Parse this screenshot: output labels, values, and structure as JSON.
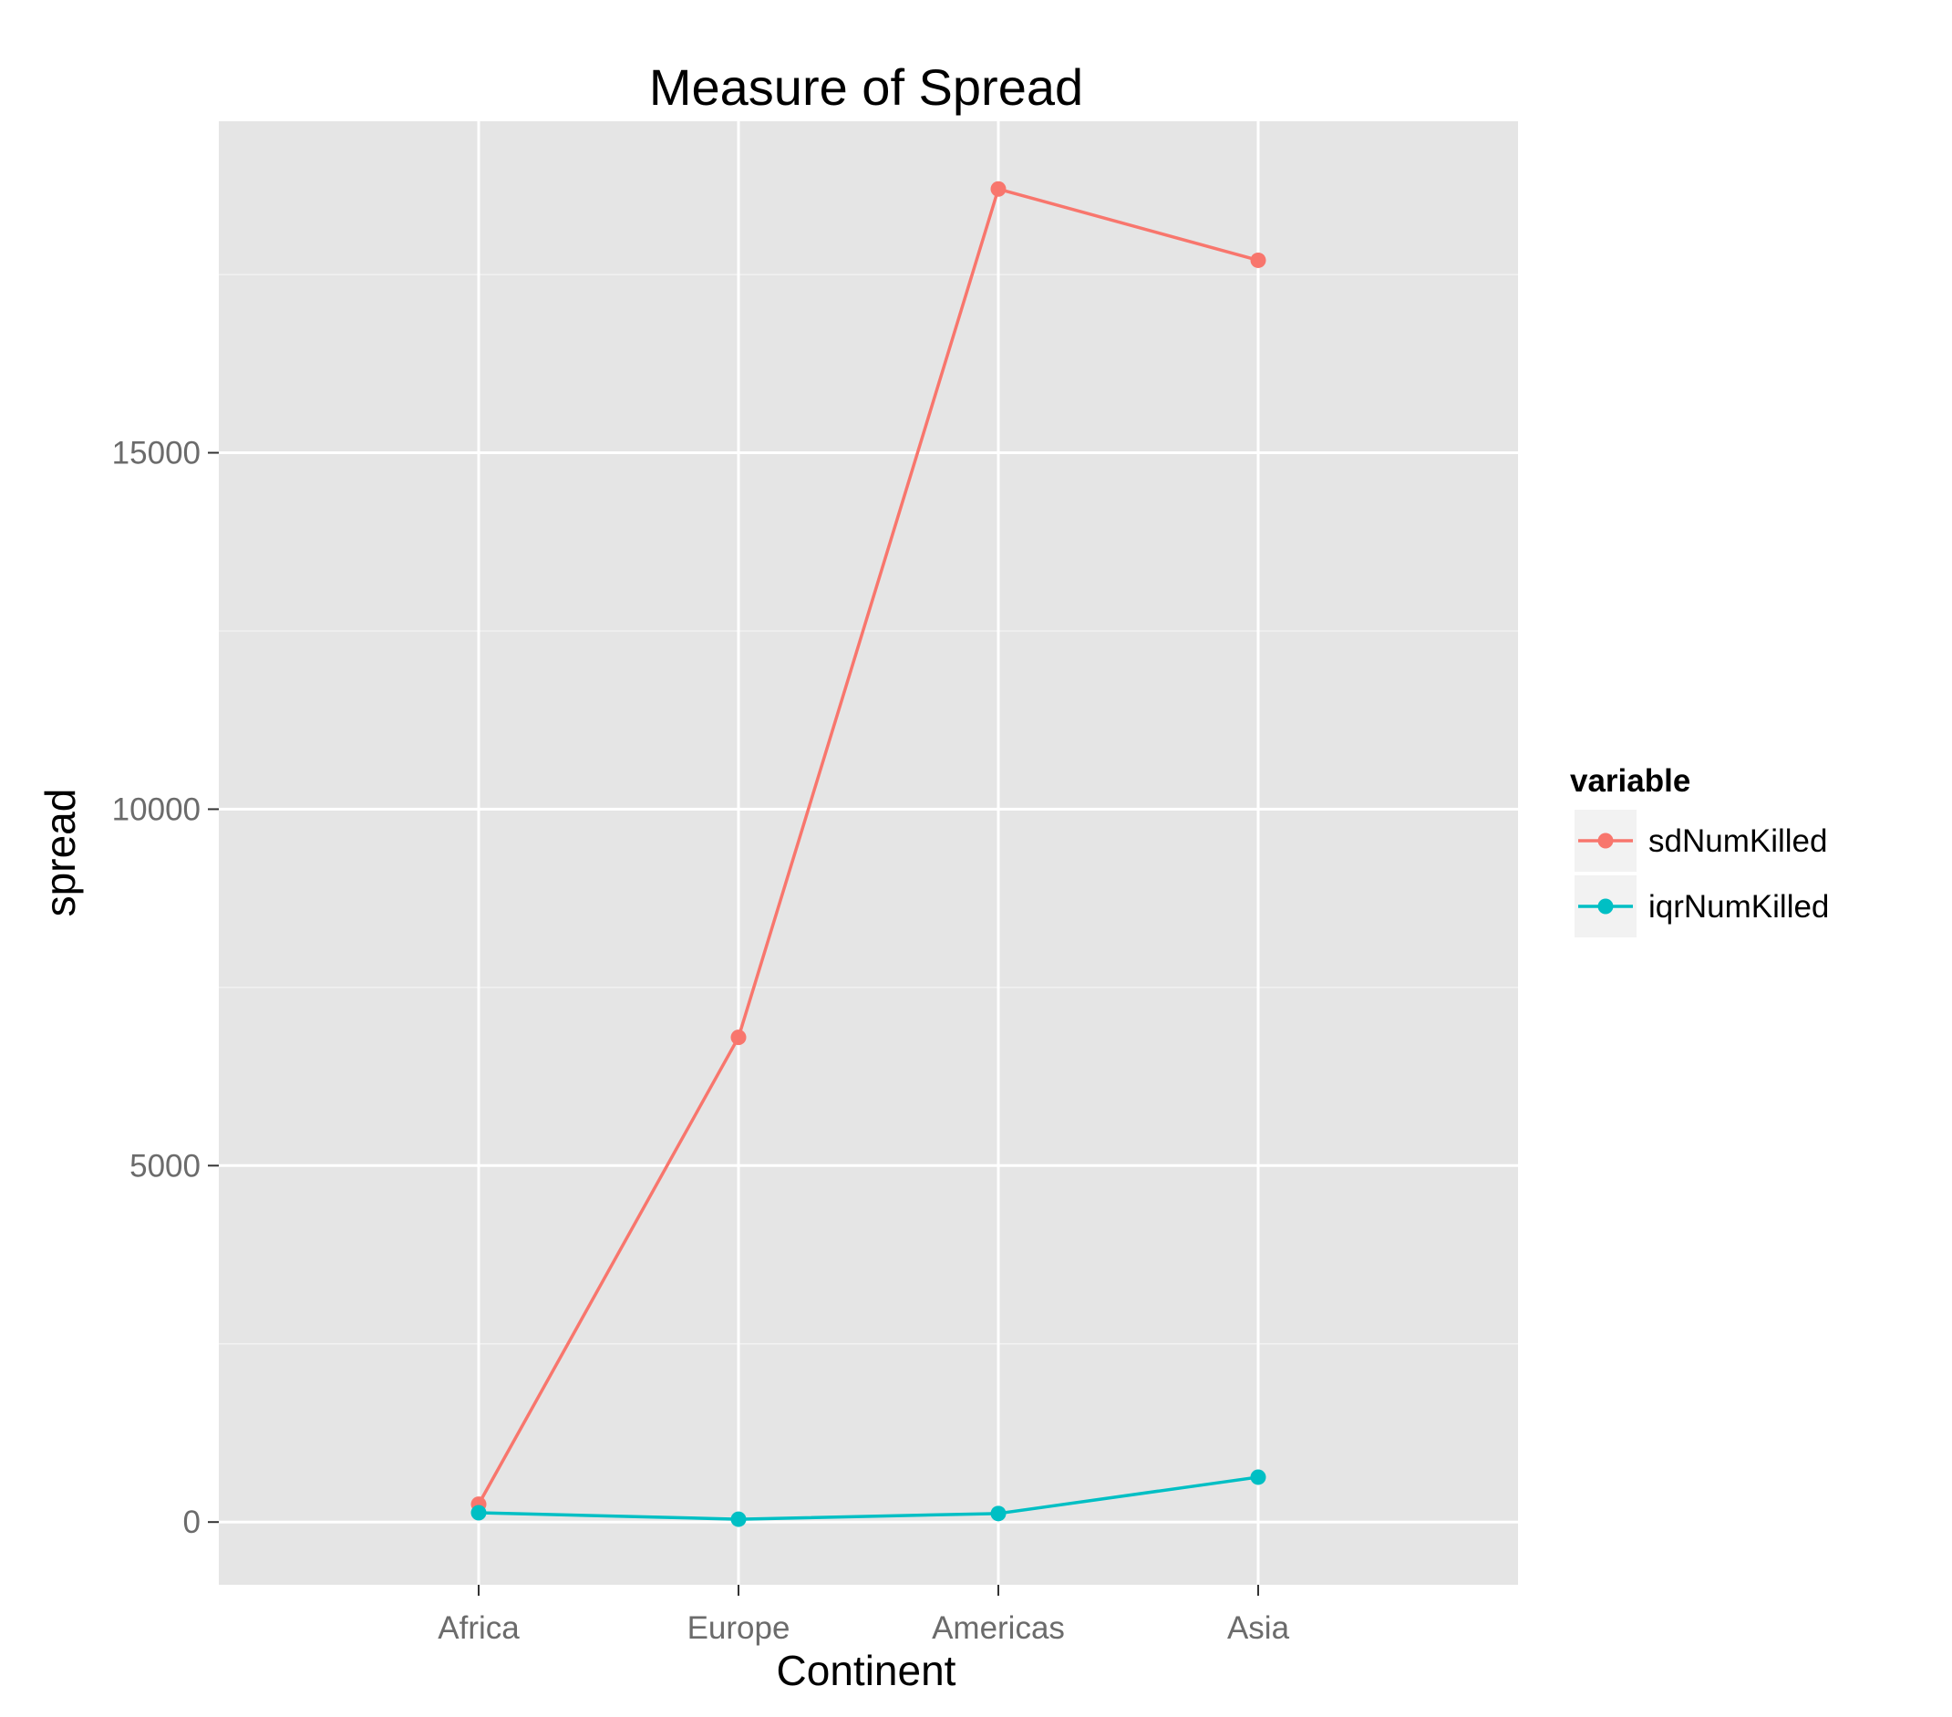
{
  "chart_data": {
    "type": "line",
    "title": "Measure of Spread",
    "xlabel": "Continent",
    "ylabel": "spread",
    "categories": [
      "Africa",
      "Europe",
      "Americas",
      "Asia"
    ],
    "series": [
      {
        "name": "sdNumKilled",
        "color": "#F8766D",
        "values": [
          250,
          6800,
          18700,
          17700
        ]
      },
      {
        "name": "iqrNumKilled",
        "color": "#00BFC4",
        "values": [
          130,
          40,
          120,
          630
        ]
      }
    ],
    "ylim": [
      -880,
      19650
    ],
    "yticks": [
      0,
      5000,
      10000,
      15000
    ],
    "grid": true,
    "legend": {
      "title": "variable",
      "position": "right"
    },
    "colors": {
      "panel": "#E5E5E5",
      "grid_major": "#FFFFFF",
      "grid_minor": "#F2F2F2"
    }
  }
}
